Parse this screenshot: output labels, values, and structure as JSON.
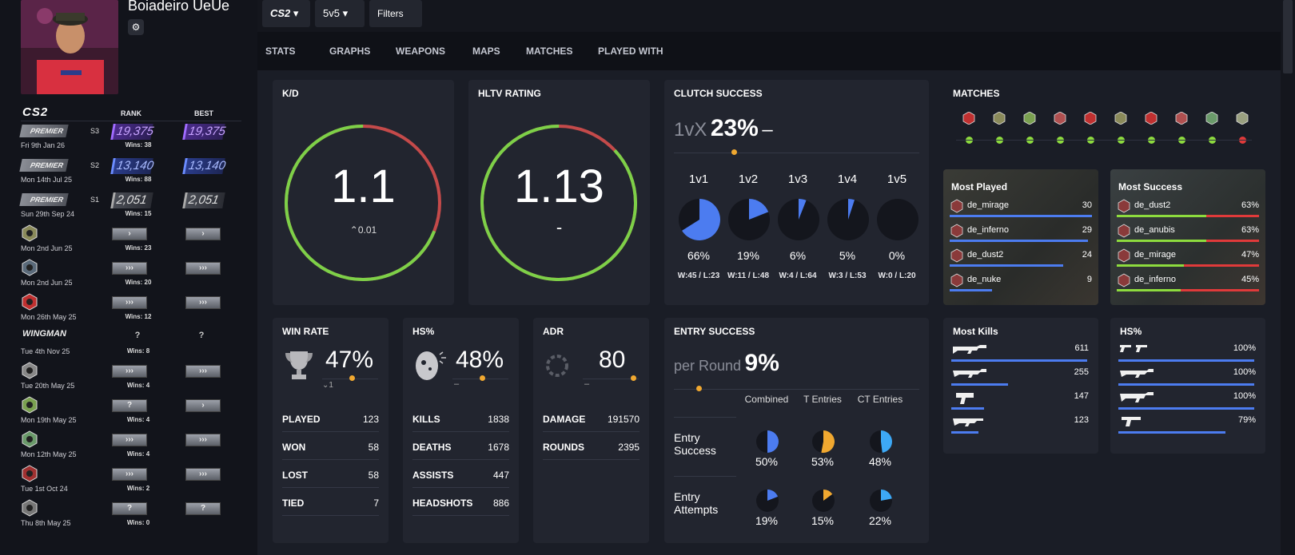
{
  "player": {
    "name": "Boiadeiro UeUe"
  },
  "sidebar": {
    "header": {
      "game": "CS2",
      "rank_col": "RANK",
      "best_col": "BEST"
    },
    "rows": [
      {
        "type": "premier",
        "badge": "PREMIER",
        "date": "Fri 9th Jan 26",
        "season": "S3",
        "rank": "19,375",
        "best": "19,375",
        "wins": "Wins: 38",
        "color": "purple"
      },
      {
        "type": "premier",
        "badge": "PREMIER",
        "date": "Mon 14th Jul 25",
        "season": "S2",
        "rank": "13,140",
        "best": "13,140",
        "wins": "Wins: 88",
        "color": "blue"
      },
      {
        "type": "premier",
        "badge": "PREMIER",
        "date": "Sun 29th Sep 24",
        "season": "S1",
        "rank": "2,051",
        "best": "2,051",
        "wins": "Wins: 15",
        "color": "grey"
      },
      {
        "type": "map",
        "date": "Mon 2nd Jun 25",
        "wins": "Wins: 23",
        "rank": "›",
        "best": "›"
      },
      {
        "type": "map",
        "date": "Mon 2nd Jun 25",
        "wins": "Wins: 20",
        "rank": "›››",
        "best": "›››"
      },
      {
        "type": "map",
        "date": "Mon 26th May 25",
        "wins": "Wins: 12",
        "rank": "›››",
        "best": "›››"
      },
      {
        "type": "wingman",
        "badge": "WINGMAN",
        "date": "Tue 4th Nov 25",
        "wins": "Wins: 8",
        "rank": "?",
        "best": "?"
      },
      {
        "type": "map",
        "date": "Tue 20th May 25",
        "wins": "Wins: 4",
        "rank": "›››",
        "best": "›››"
      },
      {
        "type": "map",
        "date": "Mon 19th May 25",
        "wins": "Wins: 4",
        "rank": "?",
        "best": "›"
      },
      {
        "type": "map",
        "date": "Mon 12th May 25",
        "wins": "Wins: 4",
        "rank": "›››",
        "best": "›››"
      },
      {
        "type": "map",
        "date": "Tue 1st Oct 24",
        "wins": "Wins: 2",
        "rank": "›››",
        "best": "›››"
      },
      {
        "type": "map",
        "date": "Thu 8th May 25",
        "wins": "Wins: 0",
        "rank": "?",
        "best": "?"
      }
    ]
  },
  "toolbar": {
    "game": "CS2",
    "mode": "5v5",
    "filters": "Filters"
  },
  "tabs": [
    "STATS",
    "GRAPHS",
    "WEAPONS",
    "MAPS",
    "MATCHES",
    "PLAYED WITH"
  ],
  "kd": {
    "title": "K/D",
    "value": "1.1",
    "delta": "0.01",
    "ratio": 0.69
  },
  "hltv": {
    "title": "HLTV RATING",
    "value": "1.13",
    "delta": "-",
    "ratio": 0.87
  },
  "clutch": {
    "title": "CLUTCH SUCCESS",
    "prefix": "1vX",
    "value": "23%",
    "suffix": "–",
    "items": [
      {
        "label": "1v1",
        "pct": "66%",
        "frac": 0.66,
        "record": "W:45 / L:23"
      },
      {
        "label": "1v2",
        "pct": "19%",
        "frac": 0.19,
        "record": "W:11 / L:48"
      },
      {
        "label": "1v3",
        "pct": "6%",
        "frac": 0.06,
        "record": "W:4 / L:64"
      },
      {
        "label": "1v4",
        "pct": "5%",
        "frac": 0.05,
        "record": "W:3 / L:53"
      },
      {
        "label": "1v5",
        "pct": "0%",
        "frac": 0,
        "record": "W:0 / L:20"
      }
    ]
  },
  "matches": {
    "title": "MATCHES",
    "results": [
      "win",
      "win",
      "win",
      "win",
      "win",
      "win",
      "win",
      "win",
      "win",
      "loss"
    ]
  },
  "most_played": {
    "title": "Most Played",
    "rows": [
      {
        "map": "de_mirage",
        "value": "30",
        "frac": 1.0
      },
      {
        "map": "de_inferno",
        "value": "29",
        "frac": 0.97
      },
      {
        "map": "de_dust2",
        "value": "24",
        "frac": 0.8
      },
      {
        "map": "de_nuke",
        "value": "9",
        "frac": 0.3
      }
    ]
  },
  "most_success": {
    "title": "Most Success",
    "rows": [
      {
        "map": "de_dust2",
        "value": "63%",
        "frac": 0.63
      },
      {
        "map": "de_anubis",
        "value": "63%",
        "frac": 0.63
      },
      {
        "map": "de_mirage",
        "value": "47%",
        "frac": 0.47
      },
      {
        "map": "de_inferno",
        "value": "45%",
        "frac": 0.45
      }
    ]
  },
  "winrate": {
    "title": "WIN RATE",
    "value": "47%",
    "delta": "1",
    "rows": [
      {
        "label": "PLAYED",
        "value": "123"
      },
      {
        "label": "WON",
        "value": "58"
      },
      {
        "label": "LOST",
        "value": "58"
      },
      {
        "label": "TIED",
        "value": "7"
      }
    ]
  },
  "hs": {
    "title": "HS%",
    "value": "48%",
    "delta": "–",
    "rows": [
      {
        "label": "KILLS",
        "value": "1838"
      },
      {
        "label": "DEATHS",
        "value": "1678"
      },
      {
        "label": "ASSISTS",
        "value": "447"
      },
      {
        "label": "HEADSHOTS",
        "value": "886"
      }
    ]
  },
  "adr": {
    "title": "ADR",
    "value": "80",
    "delta": "–",
    "rows": [
      {
        "label": "DAMAGE",
        "value": "191570"
      },
      {
        "label": "ROUNDS",
        "value": "2395"
      }
    ]
  },
  "entry": {
    "title": "ENTRY SUCCESS",
    "prefix": "per Round",
    "value": "9%",
    "cols": [
      "Combined",
      "T Entries",
      "CT Entries"
    ],
    "rows": [
      {
        "label": "Entry Success",
        "values": [
          "50%",
          "53%",
          "48%"
        ],
        "fracs": [
          0.5,
          0.53,
          0.48
        ]
      },
      {
        "label": "Entry Attempts",
        "values": [
          "19%",
          "15%",
          "22%"
        ],
        "fracs": [
          0.19,
          0.15,
          0.22
        ]
      }
    ],
    "colors": [
      "#4c7cf0",
      "#f0a830",
      "#3da8f5"
    ]
  },
  "most_kills": {
    "title": "Most Kills",
    "rows": [
      {
        "weapon": "ak47-icon",
        "value": "611",
        "frac": 1.0
      },
      {
        "weapon": "m4a4-icon",
        "value": "255",
        "frac": 0.42
      },
      {
        "weapon": "mac10-icon",
        "value": "147",
        "frac": 0.24
      },
      {
        "weapon": "m4a1s-icon",
        "value": "123",
        "frac": 0.2
      }
    ]
  },
  "hs_weapons": {
    "title": "HS%",
    "rows": [
      {
        "weapon": "dual-berettas-icon",
        "value": "100%",
        "frac": 1.0
      },
      {
        "weapon": "m4a4-icon",
        "value": "100%",
        "frac": 1.0
      },
      {
        "weapon": "scar-icon",
        "value": "100%",
        "frac": 1.0
      },
      {
        "weapon": "deagle-icon",
        "value": "79%",
        "frac": 0.79
      }
    ]
  },
  "colors": {
    "accent_blue": "#4c7cf0",
    "win": "#8ddb3e",
    "loss": "#e03a3a",
    "ring_red": "#c44a4a"
  }
}
